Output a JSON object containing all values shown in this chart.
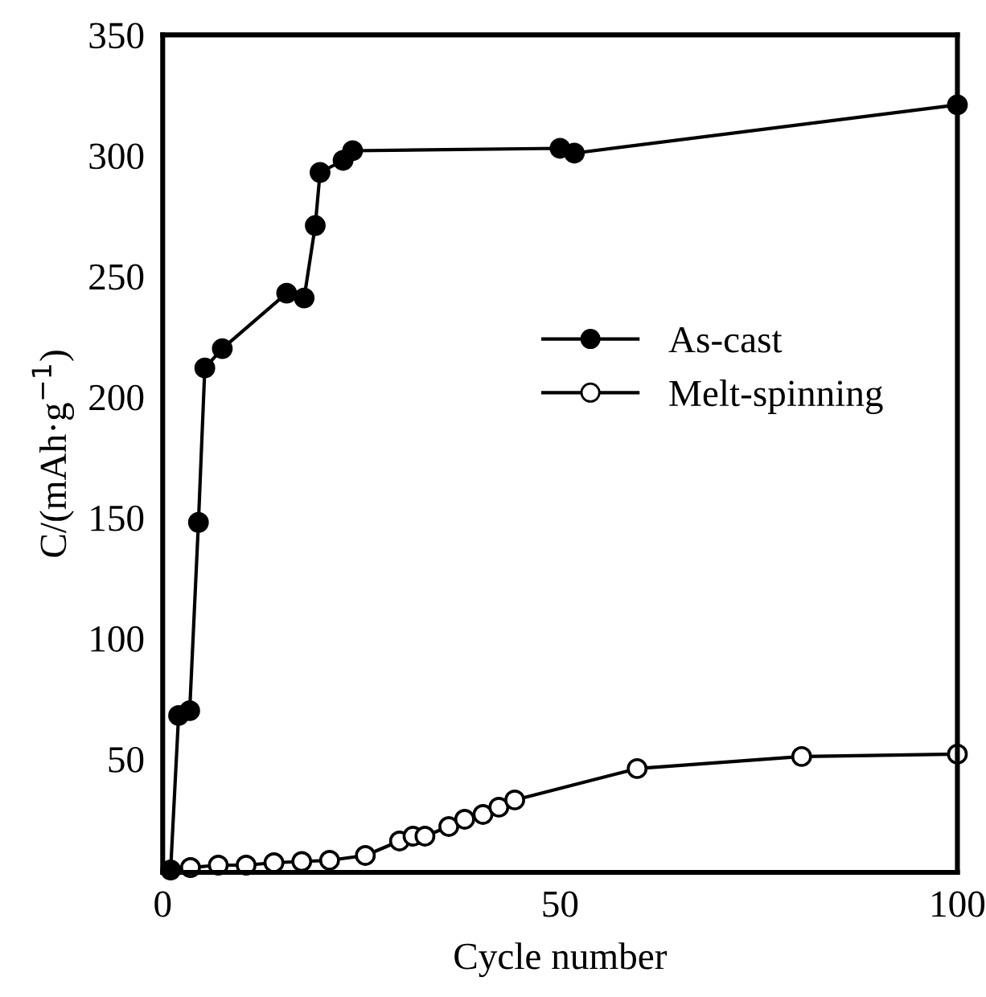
{
  "chart_data": {
    "type": "line",
    "xlabel": "Cycle number",
    "ylabel": "C/(mAh·g$^{−1}$)",
    "xlim": [
      0,
      100
    ],
    "xticks": [
      0,
      50,
      100
    ],
    "ylim": [
      3,
      350
    ],
    "yticks": [
      50,
      100,
      150,
      200,
      250,
      300,
      350
    ],
    "grid": false,
    "legend": "right",
    "line_style": "solid",
    "series": [
      {
        "name": "As-cast",
        "color": "#000000",
        "marker": "circle",
        "x": [
          1,
          2.0,
          3.4,
          4.5,
          5.3,
          7.5,
          15.6,
          17.8,
          19.2,
          19.8,
          22.7,
          23.9,
          50,
          51.8,
          100
        ],
        "values": [
          4,
          68,
          70,
          148,
          212,
          220,
          243,
          241,
          271,
          293,
          298,
          302,
          303,
          301,
          321
        ]
      },
      {
        "name": "Melt-spinning",
        "color": "#000000",
        "marker": "circle",
        "x": [
          3.5,
          7,
          10.5,
          14,
          17.5,
          21,
          25.5,
          29.8,
          31.5,
          33,
          36,
          38,
          40.3,
          42.3,
          44.3,
          59.7,
          80.4,
          100
        ],
        "values": [
          5,
          6,
          6,
          7,
          7.5,
          8,
          10,
          16,
          18,
          18,
          22,
          25,
          27,
          30,
          33,
          46,
          51,
          52
        ]
      }
    ]
  }
}
